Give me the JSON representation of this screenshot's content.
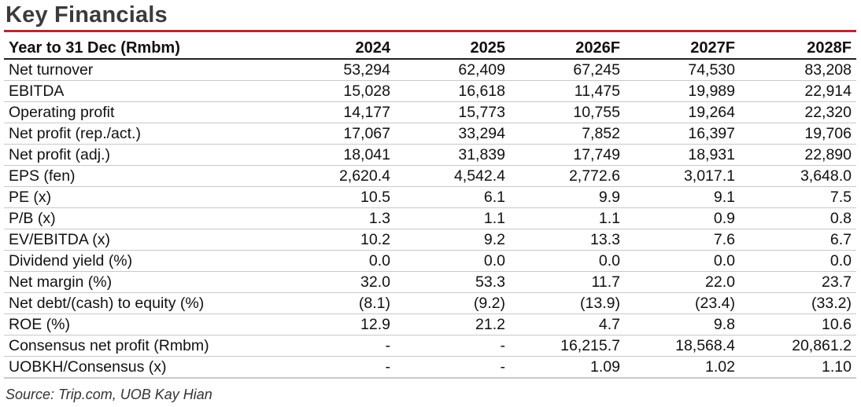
{
  "title": "Key Financials",
  "table": {
    "headers": [
      "Year to 31 Dec (Rmbm)",
      "2024",
      "2025",
      "2026F",
      "2027F",
      "2028F"
    ],
    "rows": [
      [
        "Net turnover",
        "53,294",
        "62,409",
        "67,245",
        "74,530",
        "83,208"
      ],
      [
        "EBITDA",
        "15,028",
        "16,618",
        "11,475",
        "19,989",
        "22,914"
      ],
      [
        "Operating profit",
        "14,177",
        "15,773",
        "10,755",
        "19,264",
        "22,320"
      ],
      [
        "Net profit (rep./act.)",
        "17,067",
        "33,294",
        "7,852",
        "16,397",
        "19,706"
      ],
      [
        "Net profit (adj.)",
        "18,041",
        "31,839",
        "17,749",
        "18,931",
        "22,890"
      ],
      [
        "EPS (fen)",
        "2,620.4",
        "4,542.4",
        "2,772.6",
        "3,017.1",
        "3,648.0"
      ],
      [
        "PE (x)",
        "10.5",
        "6.1",
        "9.9",
        "9.1",
        "7.5"
      ],
      [
        "P/B (x)",
        "1.3",
        "1.1",
        "1.1",
        "0.9",
        "0.8"
      ],
      [
        "EV/EBITDA (x)",
        "10.2",
        "9.2",
        "13.3",
        "7.6",
        "6.7"
      ],
      [
        "Dividend yield (%)",
        "0.0",
        "0.0",
        "0.0",
        "0.0",
        "0.0"
      ],
      [
        "Net margin (%)",
        "32.0",
        "53.3",
        "11.7",
        "22.0",
        "23.7"
      ],
      [
        "Net debt/(cash) to equity (%)",
        "(8.1)",
        "(9.2)",
        "(13.9)",
        "(23.4)",
        "(33.2)"
      ],
      [
        "ROE (%)",
        "12.9",
        "21.2",
        "4.7",
        "9.8",
        "10.6"
      ],
      [
        "Consensus net profit (Rmbm)",
        "-",
        "-",
        "16,215.7",
        "18,568.4",
        "20,861.2"
      ],
      [
        "UOBKH/Consensus (x)",
        "-",
        "-",
        "1.09",
        "1.02",
        "1.10"
      ]
    ]
  },
  "source": "Source: Trip.com, UOB Kay Hian",
  "colors": {
    "accent_rule": "#b8282c",
    "title": "#3b3b3b",
    "row_rule": "#c9c9c9"
  }
}
